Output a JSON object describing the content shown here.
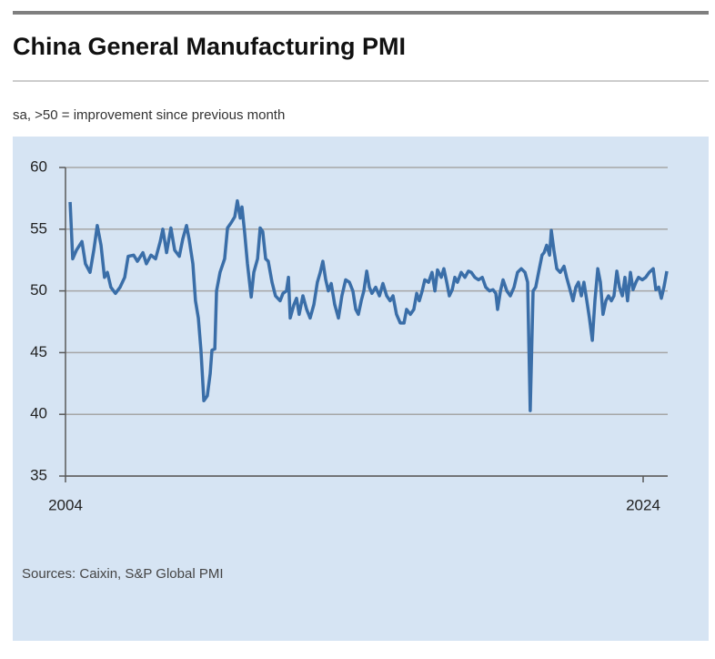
{
  "chart_data": {
    "type": "line",
    "title": "China General Manufacturing PMI",
    "subtitle": "sa, >50 = improvement since previous month",
    "source": "Sources: Caixin, S&P Global PMI",
    "color": "#3a6ea8",
    "grid": true,
    "xlim": [
      2004,
      2024.85
    ],
    "xticks": [
      2004,
      2024
    ],
    "ylim": [
      35,
      60
    ],
    "yticks": [
      35,
      40,
      45,
      50,
      55,
      60
    ],
    "x": [
      2004.16,
      2004.25,
      2004.38,
      2004.57,
      2004.69,
      2004.85,
      2004.98,
      2005.1,
      2005.23,
      2005.35,
      2005.45,
      2005.57,
      2005.73,
      2005.89,
      2006.05,
      2006.17,
      2006.36,
      2006.49,
      2006.68,
      2006.8,
      2006.96,
      2007.12,
      2007.28,
      2007.37,
      2007.5,
      2007.65,
      2007.78,
      2007.94,
      2008.06,
      2008.19,
      2008.28,
      2008.41,
      2008.5,
      2008.6,
      2008.69,
      2008.79,
      2008.91,
      2009.01,
      2009.07,
      2009.17,
      2009.23,
      2009.35,
      2009.51,
      2009.61,
      2009.73,
      2009.86,
      2009.95,
      2010.05,
      2010.11,
      2010.2,
      2010.3,
      2010.43,
      2010.52,
      2010.65,
      2010.74,
      2010.83,
      2010.93,
      2011.02,
      2011.15,
      2011.27,
      2011.43,
      2011.53,
      2011.65,
      2011.72,
      2011.78,
      2011.91,
      2012.0,
      2012.09,
      2012.22,
      2012.35,
      2012.47,
      2012.6,
      2012.72,
      2012.82,
      2012.91,
      2013.01,
      2013.1,
      2013.2,
      2013.32,
      2013.45,
      2013.57,
      2013.7,
      2013.83,
      2013.95,
      2014.05,
      2014.14,
      2014.24,
      2014.33,
      2014.43,
      2014.52,
      2014.61,
      2014.74,
      2014.87,
      2014.99,
      2015.12,
      2015.24,
      2015.34,
      2015.46,
      2015.59,
      2015.72,
      2015.81,
      2015.94,
      2016.06,
      2016.16,
      2016.25,
      2016.35,
      2016.44,
      2016.57,
      2016.69,
      2016.79,
      2016.88,
      2017.01,
      2017.1,
      2017.2,
      2017.29,
      2017.39,
      2017.48,
      2017.57,
      2017.7,
      2017.83,
      2017.95,
      2018.05,
      2018.17,
      2018.3,
      2018.43,
      2018.55,
      2018.68,
      2018.8,
      2018.9,
      2018.96,
      2019.06,
      2019.15,
      2019.28,
      2019.4,
      2019.53,
      2019.65,
      2019.78,
      2019.91,
      2020.0,
      2020.09,
      2020.19,
      2020.28,
      2020.38,
      2020.5,
      2020.57,
      2020.66,
      2020.76,
      2020.82,
      2020.91,
      2021.01,
      2021.13,
      2021.26,
      2021.35,
      2021.48,
      2021.57,
      2021.67,
      2021.76,
      2021.86,
      2021.95,
      2022.05,
      2022.14,
      2022.24,
      2022.33,
      2022.43,
      2022.52,
      2022.61,
      2022.71,
      2022.8,
      2022.9,
      2022.99,
      2023.09,
      2023.18,
      2023.28,
      2023.37,
      2023.46,
      2023.56,
      2023.65,
      2023.75,
      2023.84,
      2023.97,
      2024.09,
      2024.21,
      2024.35,
      2024.44,
      2024.54,
      2024.63,
      2024.72,
      2024.82
    ],
    "values": [
      57.2,
      52.6,
      53.3,
      54.0,
      52.2,
      51.5,
      53.3,
      55.3,
      53.7,
      51.1,
      51.5,
      50.3,
      49.8,
      50.3,
      51.1,
      52.8,
      52.9,
      52.4,
      53.1,
      52.2,
      52.9,
      52.6,
      54.0,
      55.0,
      53.1,
      55.1,
      53.3,
      52.8,
      54.2,
      55.3,
      54.2,
      52.2,
      49.2,
      47.8,
      45.2,
      41.1,
      41.5,
      43.3,
      45.2,
      45.3,
      50.0,
      51.5,
      52.6,
      55.1,
      55.5,
      56.0,
      57.3,
      55.9,
      56.8,
      54.8,
      52.2,
      49.5,
      51.5,
      52.6,
      55.1,
      54.8,
      52.6,
      52.4,
      50.7,
      49.6,
      49.2,
      49.8,
      50.0,
      51.1,
      47.8,
      48.9,
      49.4,
      48.1,
      49.6,
      48.5,
      47.8,
      48.9,
      50.7,
      51.5,
      52.4,
      50.9,
      50.0,
      50.6,
      48.9,
      47.8,
      49.6,
      50.9,
      50.7,
      50.0,
      48.5,
      48.1,
      49.2,
      50.0,
      51.6,
      50.3,
      49.8,
      50.3,
      49.6,
      50.6,
      49.6,
      49.2,
      49.6,
      48.1,
      47.4,
      47.4,
      48.5,
      48.1,
      48.5,
      49.8,
      49.2,
      50.0,
      50.9,
      50.7,
      51.5,
      50.0,
      51.7,
      51.1,
      51.8,
      50.7,
      49.6,
      50.1,
      51.1,
      50.7,
      51.5,
      51.1,
      51.6,
      51.5,
      51.1,
      50.9,
      51.1,
      50.3,
      50.0,
      50.1,
      49.8,
      48.5,
      50.0,
      50.9,
      50.0,
      49.6,
      50.3,
      51.5,
      51.8,
      51.5,
      50.7,
      40.3,
      50.0,
      50.3,
      51.5,
      52.9,
      53.1,
      53.7,
      52.9,
      54.9,
      53.3,
      51.8,
      51.5,
      52.0,
      51.1,
      50.0,
      49.2,
      50.3,
      50.7,
      49.6,
      50.7,
      49.2,
      47.8,
      46.0,
      49.2,
      51.8,
      50.7,
      48.1,
      49.2,
      49.6,
      49.2,
      49.6,
      51.6,
      50.3,
      49.6,
      51.1,
      49.2,
      51.5,
      50.1,
      50.7,
      51.1,
      50.9,
      51.1,
      51.5,
      51.8,
      50.1,
      50.3,
      49.4,
      50.3,
      51.6
    ]
  }
}
